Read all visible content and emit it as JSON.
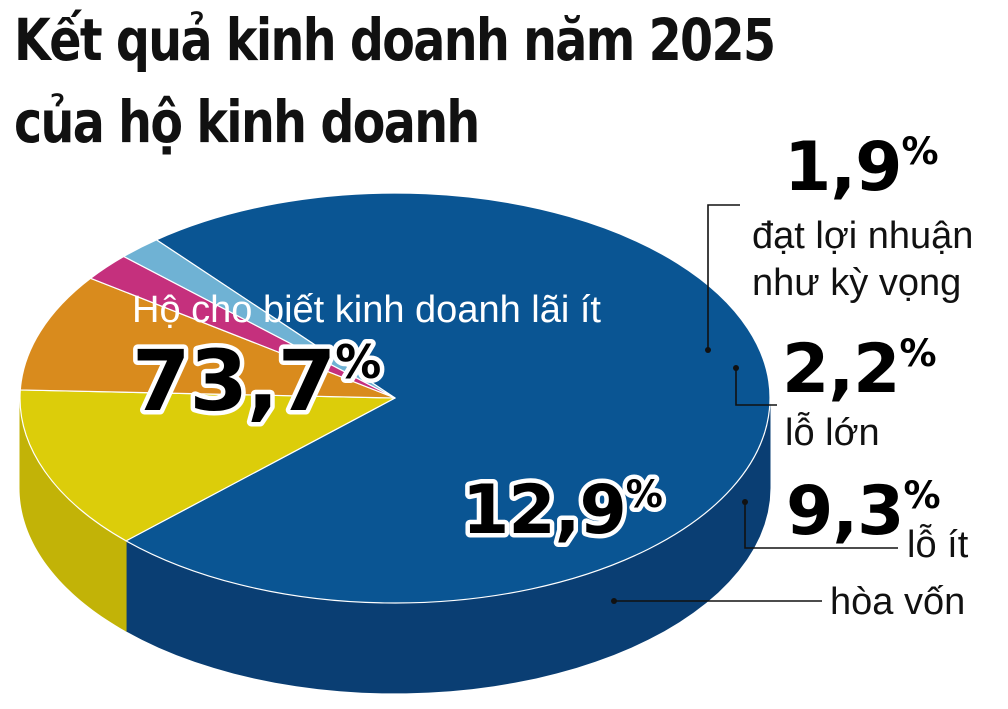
{
  "title": {
    "line1": "Kết quả kinh doanh năm 2025",
    "line2": "của hộ kinh doanh"
  },
  "chart_data": {
    "type": "pie",
    "title": "Kết quả kinh doanh năm 2025 của hộ kinh doanh",
    "slices": [
      {
        "label": "Hộ cho biết kinh doanh lãi ít",
        "value": 73.7,
        "value_text": "73,7%",
        "color": "#0a5593",
        "side_color": "#0a3e73"
      },
      {
        "label": "hòa vốn",
        "value": 12.9,
        "value_text": "12,9%",
        "color": "#dccd0a",
        "side_color": "#c2b307"
      },
      {
        "label": "lỗ ít",
        "value": 9.3,
        "value_text": "9,3%",
        "color": "#d98b1d",
        "side_color": "#b86d12"
      },
      {
        "label": "lỗ lớn",
        "value": 2.2,
        "value_text": "2,2%",
        "color": "#c5307d",
        "side_color": "#a3236a"
      },
      {
        "label": "đạt lợi nhuận như kỳ vọng",
        "label_lines": [
          "đạt lợi nhuận",
          "như kỳ vọng"
        ],
        "value": 1.9,
        "value_text": "1,9%",
        "color": "#6fb2d4",
        "side_color": "#4f93b5"
      }
    ]
  }
}
